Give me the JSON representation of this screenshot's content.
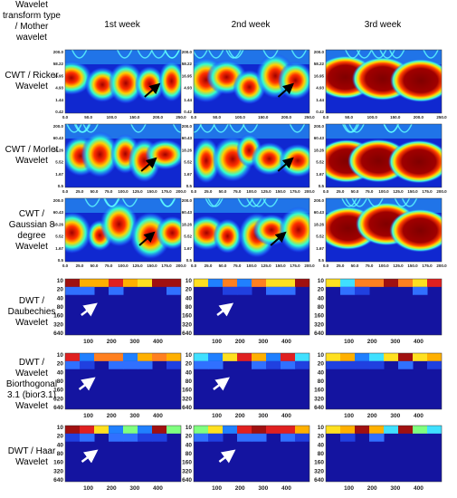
{
  "header": {
    "corner": "Wavelet transform type / Mother wavelet",
    "columns": [
      "1st week",
      "2nd week",
      "3rd week"
    ]
  },
  "rows": [
    {
      "label": "CWT / Ricker Wavelet",
      "kind": "cwt",
      "yticks": [
        "200.0",
        "58.22",
        "16.95",
        "4.93",
        "1.44",
        "0.42"
      ],
      "xticks": [
        "0.0",
        "50.0",
        "100.0",
        "150.0",
        "200.0",
        "250.0"
      ]
    },
    {
      "label": "CWT / Morlet Wavelet",
      "kind": "cwt",
      "yticks": [
        "200.0",
        "60.43",
        "18.26",
        "5.52",
        "1.67",
        "0.5"
      ],
      "xticks": [
        "0.0",
        "25.0",
        "50.0",
        "75.0",
        "100.0",
        "125.0",
        "150.0",
        "175.0",
        "200.0"
      ]
    },
    {
      "label": "CWT / Gaussian 8 degree Wavelet",
      "kind": "cwt",
      "yticks": [
        "200.0",
        "60.43",
        "18.26",
        "5.52",
        "1.67",
        "0.5"
      ],
      "xticks": [
        "0.0",
        "25.0",
        "50.0",
        "75.0",
        "100.0",
        "125.0",
        "150.0",
        "175.0",
        "200.0"
      ]
    },
    {
      "label": "DWT / Daubechies Wavelet",
      "kind": "dwt",
      "yticks": [
        "10",
        "20",
        "40",
        "80",
        "160",
        "320",
        "640"
      ],
      "xticks": [
        "100",
        "200",
        "300",
        "400"
      ]
    },
    {
      "label": "DWT / Wavelet Biorthogonal 3.1 (bior3.1) Wavelet",
      "kind": "dwt",
      "yticks": [
        "10",
        "20",
        "40",
        "80",
        "160",
        "320",
        "640"
      ],
      "xticks": [
        "100",
        "200",
        "300",
        "400"
      ]
    },
    {
      "label": "DWT / Haar Wavelet",
      "kind": "dwt",
      "yticks": [
        "10",
        "20",
        "40",
        "80",
        "160",
        "320",
        "640"
      ],
      "xticks": [
        "100",
        "200",
        "300",
        "400"
      ]
    }
  ]
}
